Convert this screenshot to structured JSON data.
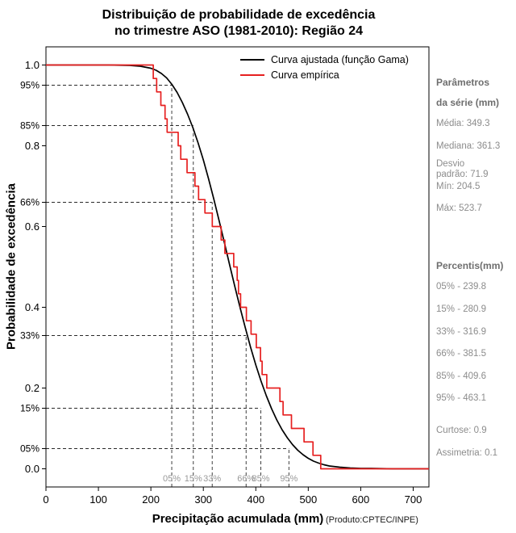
{
  "title": {
    "line1": "Distribuição de probabilidade de excedência",
    "line2": "no trimestre ASO (1981-2010): Região 24"
  },
  "footer": {
    "produto": "(Produto:CPTEC/INPE)"
  },
  "stats": {
    "header1": "Parâmetros",
    "header2": "da série (mm)",
    "media": "Média: 349.3",
    "mediana": "Mediana: 361.3",
    "desvio_line1": "Desvio",
    "desvio_line2": "padrão: 71.9",
    "min": "Mín: 204.5",
    "max": "Máx: 523.7",
    "percentis_header": "Percentis(mm)",
    "p05": "05% - 239.8",
    "p15": "15% - 280.9",
    "p33": "33% - 316.9",
    "p66": "66% - 381.5",
    "p85": "85% - 409.6",
    "p95": "95% - 463.1",
    "curtose": "Curtose: 0.9",
    "assimetria": "Assimetria: 0.1"
  },
  "chart_data": {
    "type": "line",
    "title": "Distribuição de probabilidade de excedência no trimestre ASO (1981-2010): Região 24",
    "xlabel": "Precipitação acumulada (mm)",
    "ylabel": "Probabilidade de excedência",
    "xlim": [
      0,
      730
    ],
    "ylim": [
      0,
      1
    ],
    "x_ticks": [
      0,
      100,
      200,
      300,
      400,
      500,
      600,
      700
    ],
    "y_ticks": [
      0,
      0.2,
      0.4,
      0.6,
      0.8,
      1
    ],
    "grid": false,
    "legend_position": "top-center-inside",
    "colors": {
      "fitted": "#000000",
      "empirical": "#e62020",
      "dashed": "#2a2a2a",
      "muted_label": "#999999"
    },
    "series": [
      {
        "name": "Curva ajustada (função Gama)",
        "type": "line",
        "color": "#000000",
        "x": [
          0,
          120,
          160,
          180,
          200,
          210,
          220,
          230,
          240,
          250,
          260,
          270,
          280,
          290,
          300,
          310,
          320,
          330,
          340,
          350,
          360,
          370,
          380,
          390,
          400,
          410,
          420,
          430,
          440,
          450,
          460,
          470,
          480,
          490,
          500,
          510,
          520,
          530,
          540,
          560,
          580,
          600,
          620,
          660,
          730
        ],
        "y": [
          1,
          1,
          0.999,
          0.997,
          0.992,
          0.987,
          0.979,
          0.968,
          0.952,
          0.932,
          0.907,
          0.878,
          0.845,
          0.807,
          0.765,
          0.718,
          0.668,
          0.615,
          0.561,
          0.506,
          0.452,
          0.399,
          0.349,
          0.301,
          0.257,
          0.217,
          0.181,
          0.149,
          0.121,
          0.097,
          0.077,
          0.06,
          0.046,
          0.035,
          0.026,
          0.019,
          0.014,
          0.01,
          0.007,
          0.004,
          0.002,
          0.001,
          0.001,
          0,
          0
        ]
      },
      {
        "name": "Curva empírica",
        "type": "step-exceedance",
        "color": "#e62020",
        "sorted_values": [
          204.5,
          211,
          219,
          227,
          231,
          252,
          257,
          269,
          284,
          291,
          303,
          317,
          334,
          341,
          358,
          364.6,
          367,
          371,
          382,
          391,
          401,
          409,
          412,
          421,
          446,
          452,
          468,
          492,
          509,
          523.7
        ]
      }
    ],
    "reference_lines": [
      {
        "y": 0.95,
        "x": 239.8,
        "y_label": "95%",
        "x_label": "05%"
      },
      {
        "y": 0.85,
        "x": 280.9,
        "y_label": "85%",
        "x_label": "15%"
      },
      {
        "y": 0.66,
        "x": 316.9,
        "y_label": "66%",
        "x_label": "33%"
      },
      {
        "y": 0.33,
        "x": 381.5,
        "y_label": "33%",
        "x_label": "66%"
      },
      {
        "y": 0.15,
        "x": 409.6,
        "y_label": "15%",
        "x_label": "85%"
      },
      {
        "y": 0.05,
        "x": 463.1,
        "y_label": "05%",
        "x_label": "95%"
      }
    ]
  }
}
